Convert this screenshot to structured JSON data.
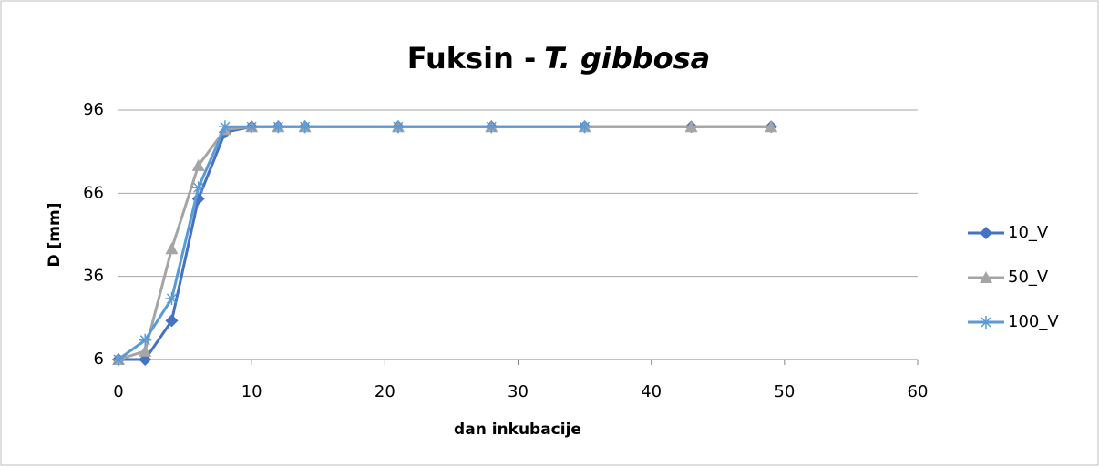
{
  "chart_data": {
    "type": "line",
    "title": [
      "Fuksin -",
      "T. gibbosa"
    ],
    "x_label": "dan inkubacije",
    "y_label": "D [mm]",
    "xlim": [
      0,
      60
    ],
    "xticks": [
      0,
      10,
      20,
      30,
      40,
      50,
      60
    ],
    "ylim": [
      6,
      96
    ],
    "yticks": [
      6,
      36,
      66,
      96
    ],
    "grid": true,
    "legend": "right",
    "series": [
      {
        "name": "10_V",
        "color": "#4472c4",
        "marker": "diamond",
        "x": [
          0,
          2,
          4,
          6,
          8,
          10,
          12,
          14,
          21,
          28,
          35,
          43,
          49
        ],
        "values": [
          6,
          6,
          20,
          64,
          88,
          90,
          90,
          90,
          90,
          90,
          90,
          90,
          90
        ]
      },
      {
        "name": "50_V",
        "color": "#a5a5a5",
        "marker": "triangle",
        "x": [
          0,
          2,
          4,
          6,
          8,
          10,
          12,
          14,
          21,
          28,
          35,
          43,
          49
        ],
        "values": [
          6,
          9,
          46,
          76,
          89,
          90,
          90,
          90,
          90,
          90,
          90,
          90,
          90
        ]
      },
      {
        "name": "100_V",
        "color": "#5b9bd5",
        "marker": "star",
        "x": [
          0,
          2,
          4,
          6,
          8,
          10,
          12,
          14,
          21,
          28,
          35
        ],
        "values": [
          6,
          13,
          28,
          68,
          90,
          90,
          90,
          90,
          90,
          90,
          90
        ]
      }
    ]
  }
}
